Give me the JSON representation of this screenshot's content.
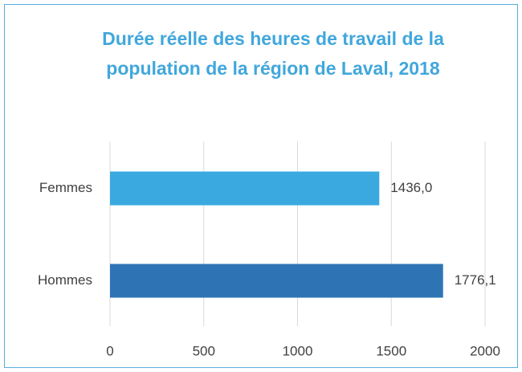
{
  "chart_data": {
    "type": "barh",
    "title": "Durée réelle des heures de travail de la population de la région de Laval, 2018",
    "categories": [
      "Femmes",
      "Hommes"
    ],
    "values": [
      1436.0,
      1776.1
    ],
    "value_labels": [
      "1436,0",
      "1776,1"
    ],
    "colors": [
      "#3aa9e0",
      "#2e74b5"
    ],
    "xlim": [
      0,
      2000
    ],
    "xticks": [
      0,
      500,
      1000,
      1500,
      2000
    ],
    "grid": true
  }
}
